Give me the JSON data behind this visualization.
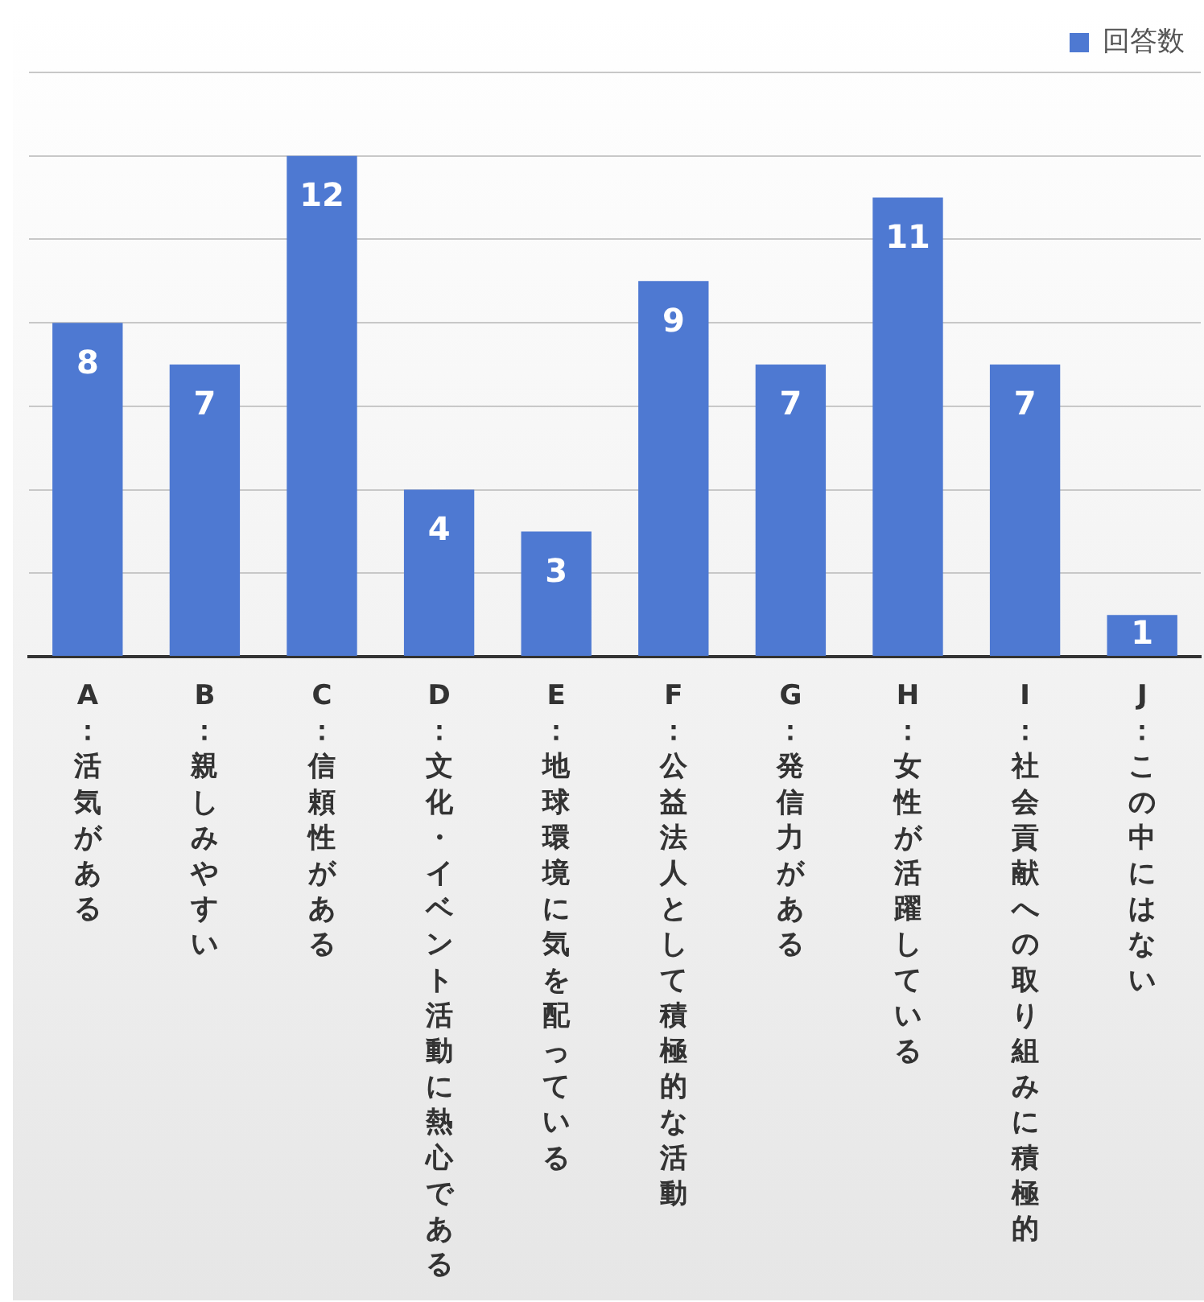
{
  "chart_data": {
    "type": "bar",
    "categories": [
      "A：活気がある",
      "B：親しみやすい",
      "C：信頼性がある",
      "D：文化・イベント活動に熱心である",
      "E：地球環境に気を配っている",
      "F：公益法人として積極的な活動",
      "G：発信力がある",
      "H：女性が活躍している",
      "I：社会貢献への取り組みに積極的",
      "J：この中にはない"
    ],
    "series": [
      {
        "name": "回答数",
        "color": "#4e79d2",
        "values": [
          8,
          7,
          12,
          4,
          3,
          9,
          7,
          11,
          7,
          1
        ]
      }
    ],
    "ylim": [
      0,
      14
    ],
    "yticks": [
      0,
      2,
      4,
      6,
      8,
      10,
      12,
      14
    ],
    "tick_labels": "x",
    "grid": "y",
    "legend": "top right",
    "data_labels": true
  }
}
